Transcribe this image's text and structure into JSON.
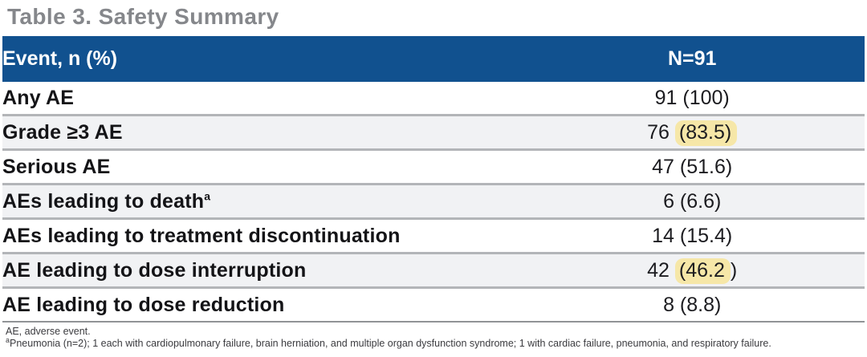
{
  "title": "Table 3. Safety Summary",
  "table": {
    "header": {
      "event_col": "Event, n (%)",
      "n_col": "N=91"
    },
    "rows": [
      {
        "label": "Any AE",
        "value": "91 (100)"
      },
      {
        "label": "Grade ≥3 AE",
        "value_pre": "76 ",
        "value_hl": "(83.5)",
        "value_post": ""
      },
      {
        "label": "Serious AE",
        "value": "47 (51.6)"
      },
      {
        "label": "AEs leading to death",
        "label_sup": "a",
        "value": "6 (6.6)"
      },
      {
        "label": "AEs leading to treatment discontinuation",
        "value": "14 (15.4)"
      },
      {
        "label": "AE leading to dose interruption",
        "value_pre": "42 ",
        "value_hl": "(46.2",
        "value_post": ")"
      },
      {
        "label": "AE leading to dose reduction",
        "value": "8 (8.8)"
      }
    ]
  },
  "footnotes": {
    "abbreviation": "AE, adverse event.",
    "note_a_sup": "a",
    "note_a": "Pneumonia (n=2); 1 each with cardiopulmonary failure, brain herniation, and multiple organ dysfunction syndrome; 1 with cardiac failure, pneumonia, and respiratory failure."
  },
  "colors": {
    "header_bg": "#11518f",
    "header_text": "#ffffff",
    "alt_row_bg": "#f1f2f4",
    "separator": "#b3b5b8",
    "highlight": "#f6e7a8",
    "title_text": "#85878b"
  }
}
